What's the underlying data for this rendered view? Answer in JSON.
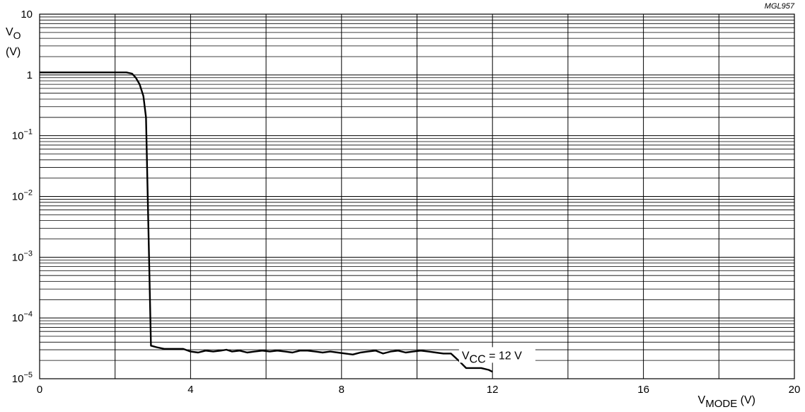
{
  "figure_id": "MGL957",
  "chart_data": {
    "type": "line",
    "y_scale": "log",
    "grid": true,
    "xlim": [
      0,
      20
    ],
    "ylim": [
      1e-05,
      10
    ],
    "xlabel": {
      "main": "V",
      "sub": "MODE",
      "unit": "(V)"
    },
    "ylabel": {
      "main": "V",
      "sub": "O",
      "unit": "(V)"
    },
    "x_ticks": [
      {
        "value": 0,
        "label": "0"
      },
      {
        "value": 4,
        "label": "4"
      },
      {
        "value": 8,
        "label": "8"
      },
      {
        "value": 12,
        "label": "12"
      },
      {
        "value": 16,
        "label": "16"
      },
      {
        "value": 20,
        "label": "20"
      }
    ],
    "y_ticks": [
      {
        "value": 10,
        "label": "10",
        "exp": ""
      },
      {
        "value": 1,
        "label": "1",
        "exp": ""
      },
      {
        "value": 0.1,
        "label": "10",
        "exp": "−1"
      },
      {
        "value": 0.01,
        "label": "10",
        "exp": "−2"
      },
      {
        "value": 0.001,
        "label": "10",
        "exp": "−3"
      },
      {
        "value": 0.0001,
        "label": "10",
        "exp": "−4"
      },
      {
        "value": 1e-05,
        "label": "10",
        "exp": "−5"
      }
    ],
    "series": [
      {
        "label": {
          "main": "V",
          "sub": "CC",
          "rest": " = 12 V"
        },
        "label_at": {
          "x": 11.0,
          "y": 2.6e-05
        },
        "x": [
          0,
          0.5,
          1.0,
          1.5,
          2.0,
          2.3,
          2.45,
          2.55,
          2.65,
          2.75,
          2.82,
          2.9,
          2.95,
          3.1,
          3.3,
          3.6,
          3.8,
          4.0,
          4.2,
          4.4,
          4.6,
          4.8,
          4.95,
          5.1,
          5.3,
          5.5,
          5.7,
          5.9,
          6.1,
          6.3,
          6.5,
          6.7,
          6.9,
          7.1,
          7.3,
          7.5,
          7.7,
          7.9,
          8.1,
          8.3,
          8.5,
          8.7,
          8.9,
          9.1,
          9.3,
          9.5,
          9.7,
          9.9,
          10.1,
          10.3,
          10.5,
          10.7,
          10.9,
          11.1,
          11.3,
          11.5,
          11.7,
          11.9,
          12.0
        ],
        "y": [
          1.1,
          1.1,
          1.1,
          1.1,
          1.1,
          1.1,
          1.05,
          0.9,
          0.7,
          0.45,
          0.2,
          0.001,
          3.5e-05,
          3.3e-05,
          3.1e-05,
          3.1e-05,
          3.1e-05,
          2.8e-05,
          2.7e-05,
          2.9e-05,
          2.8e-05,
          2.9e-05,
          3e-05,
          2.8e-05,
          2.9e-05,
          2.7e-05,
          2.8e-05,
          2.9e-05,
          2.8e-05,
          2.9e-05,
          2.8e-05,
          2.7e-05,
          2.9e-05,
          2.9e-05,
          2.8e-05,
          2.7e-05,
          2.8e-05,
          2.7e-05,
          2.6e-05,
          2.5e-05,
          2.7e-05,
          2.8e-05,
          2.9e-05,
          2.6e-05,
          2.8e-05,
          2.9e-05,
          2.7e-05,
          2.8e-05,
          2.9e-05,
          2.8e-05,
          2.7e-05,
          2.6e-05,
          2.6e-05,
          2e-05,
          1.5e-05,
          1.5e-05,
          1.5e-05,
          1.4e-05,
          1.3e-05
        ]
      }
    ]
  }
}
